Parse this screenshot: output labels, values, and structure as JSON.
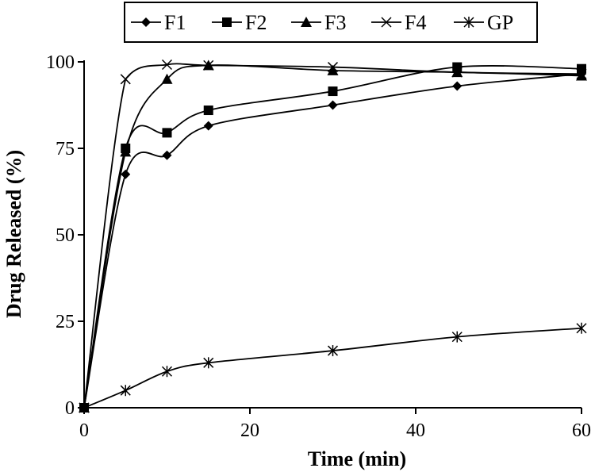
{
  "chart_data": {
    "type": "line",
    "xlabel": "Time (min)",
    "ylabel": "Drug Released (%)",
    "xlim": [
      0,
      60
    ],
    "ylim": [
      0,
      100
    ],
    "xticks": [
      0,
      20,
      40,
      60
    ],
    "yticks": [
      0,
      25,
      50,
      75,
      100
    ],
    "grid": false,
    "legend_position": "top",
    "line_color": "#000000",
    "series": [
      {
        "name": "F1",
        "marker": "diamond",
        "x": [
          0,
          5,
          10,
          15,
          30,
          45,
          60
        ],
        "y": [
          0,
          67.5,
          73,
          81.5,
          87.5,
          93,
          96.5
        ]
      },
      {
        "name": "F2",
        "marker": "square",
        "x": [
          0,
          5,
          10,
          15,
          30,
          45,
          60
        ],
        "y": [
          0,
          75,
          79.5,
          86,
          91.5,
          98.5,
          98
        ]
      },
      {
        "name": "F3",
        "marker": "triangle",
        "x": [
          0,
          5,
          10,
          15,
          30,
          45,
          60
        ],
        "y": [
          0,
          74,
          95,
          99,
          97.5,
          97,
          96
        ]
      },
      {
        "name": "F4",
        "marker": "x",
        "x": [
          0,
          5,
          10,
          15,
          30,
          45,
          60
        ],
        "y": [
          0,
          95,
          99.2,
          99,
          98.5,
          97,
          96.5
        ]
      },
      {
        "name": "GP",
        "marker": "star",
        "x": [
          0,
          5,
          10,
          15,
          30,
          45,
          60
        ],
        "y": [
          0,
          5,
          10.5,
          13,
          16.5,
          20.5,
          23
        ]
      }
    ]
  }
}
